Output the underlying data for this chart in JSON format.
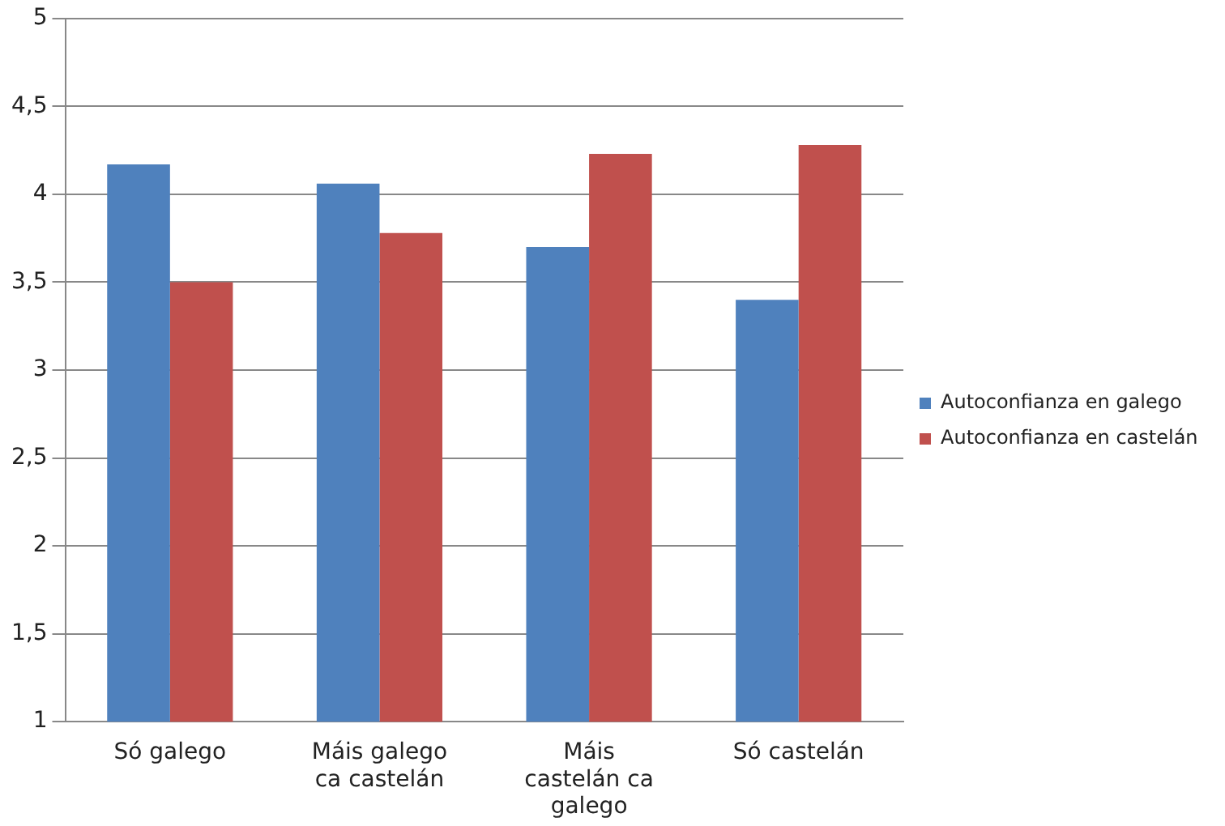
{
  "chart_data": {
    "type": "bar",
    "categories": [
      "Só galego",
      "Máis galego ca castelán",
      "Máis castelán ca galego",
      "Só castelán"
    ],
    "series": [
      {
        "name": "Autoconfianza en galego",
        "color": "#4f81bd",
        "values": [
          4.17,
          4.06,
          3.7,
          3.4
        ]
      },
      {
        "name": "Autoconfianza en castelán",
        "color": "#c0504d",
        "values": [
          3.5,
          3.78,
          4.23,
          4.28
        ]
      }
    ],
    "ylim": [
      1,
      5
    ],
    "yticks": [
      1,
      {
        "value": 1.5,
        "label": "1,5"
      },
      2,
      {
        "value": 2.5,
        "label": "2,5"
      },
      3,
      {
        "value": 3.5,
        "label": "3,5"
      },
      4,
      {
        "value": 4.5,
        "label": "4,5"
      },
      5
    ],
    "grid": "y",
    "legend": "right"
  }
}
